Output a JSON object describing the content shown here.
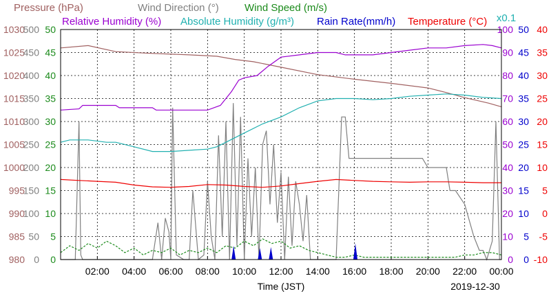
{
  "chart_data": {
    "type": "line",
    "legend_rows": [
      [
        {
          "label": "Pressure (hPa)",
          "color": "#a06060"
        },
        {
          "label": "Wind Direction (°)",
          "color": "#808080"
        },
        {
          "label": "Wind Speed (m/s)",
          "color": "#1a8a1a"
        }
      ],
      [
        {
          "label": "Relative Humidity (%)",
          "color": "#9a00d0"
        },
        {
          "label": "Absolute Humidity (g/m³)",
          "color": "#20b0b0"
        },
        {
          "label": "Rain Rate(mm/h)",
          "color": "#0000cc"
        },
        {
          "label": "Temperature (°C)",
          "color": "#ee0000"
        }
      ]
    ],
    "scale_note": "x0.1",
    "scale_note_color": "#20b0b0",
    "xlabel": "Time (JST)",
    "date": "2019-12-30",
    "xlim": [
      0,
      24
    ],
    "x_ticks": [
      "02:00",
      "04:00",
      "06:00",
      "08:00",
      "10:00",
      "12:00",
      "14:00",
      "16:00",
      "18:00",
      "20:00",
      "22:00",
      "00:00"
    ],
    "axes": {
      "pressure": {
        "color": "#a06060",
        "ticks": [
          "980",
          "985",
          "990",
          "995",
          "1000",
          "1005",
          "1010",
          "1015",
          "1020",
          "1025",
          "1030"
        ],
        "ylim": [
          980,
          1030
        ]
      },
      "wind_dir": {
        "color": "#808080",
        "ticks": [
          "0",
          "50",
          "100",
          "150",
          "200",
          "250",
          "300",
          "350",
          "400",
          "450",
          "500"
        ],
        "ylim": [
          0,
          500
        ]
      },
      "wind_speed": {
        "color": "#1a8a1a",
        "ticks": [
          "0",
          "5",
          "10",
          "15",
          "20",
          "25",
          "30",
          "35",
          "40",
          "45",
          "50"
        ],
        "ylim": [
          0,
          50
        ]
      },
      "humidity": {
        "color": "#9a00d0",
        "ticks": [
          "0",
          "10",
          "20",
          "30",
          "40",
          "50",
          "60",
          "70",
          "80",
          "90",
          "100"
        ],
        "ylim": [
          0,
          100
        ]
      },
      "rain": {
        "color": "#0000cc",
        "ticks": [
          "0",
          "5",
          "10",
          "15",
          "20",
          "25",
          "30",
          "35",
          "40",
          "45",
          "50"
        ],
        "ylim": [
          0,
          50
        ]
      },
      "temperature": {
        "color": "#ee0000",
        "ticks": [
          "-10",
          "-5",
          "0",
          "5",
          "10",
          "15",
          "20",
          "25",
          "30",
          "35",
          "40"
        ],
        "ylim": [
          -10,
          40
        ]
      }
    },
    "series": [
      {
        "name": "Pressure (hPa)",
        "axis": "pressure",
        "color": "#a06060",
        "x": [
          0,
          1.5,
          3,
          5,
          7,
          8.5,
          9.5,
          10.5,
          12,
          14,
          16,
          18,
          20,
          21,
          22,
          23.3,
          24
        ],
        "y": [
          1026.0,
          1026.5,
          1025.2,
          1024.8,
          1024.5,
          1024.2,
          1023.5,
          1023.0,
          1021.8,
          1020.2,
          1019.2,
          1018.3,
          1017.3,
          1016.3,
          1015.2,
          1014.0,
          1013.2
        ]
      },
      {
        "name": "Relative Humidity (%)",
        "axis": "humidity",
        "color": "#9a00d0",
        "x": [
          0,
          1,
          1.2,
          3,
          3.2,
          5,
          5.2,
          8,
          8.7,
          9.3,
          9.7,
          10,
          10.7,
          11.3,
          12,
          13,
          14,
          15,
          15.5,
          17,
          18,
          19,
          20,
          21,
          22,
          23,
          23.5,
          24
        ],
        "y": [
          65,
          65.5,
          67,
          67,
          66,
          66,
          65,
          65,
          67,
          73,
          78,
          79,
          80,
          84,
          88,
          89,
          90,
          90,
          89,
          89,
          90,
          91,
          92,
          92,
          93,
          93.5,
          93,
          92
        ]
      },
      {
        "name": "Absolute Humidity (g/m³)",
        "axis": "humidity",
        "color": "#20b0b0",
        "x": [
          0,
          0.5,
          1.5,
          2.5,
          3,
          4,
          5,
          6,
          7,
          8,
          8.5,
          9,
          10,
          11,
          12,
          13,
          14,
          15,
          16,
          17,
          18,
          19,
          20,
          21,
          22,
          23,
          24
        ],
        "y": [
          51,
          52,
          52,
          51,
          51,
          49,
          47,
          47,
          47.5,
          48,
          49,
          51,
          55,
          59,
          62,
          66,
          69,
          70,
          70,
          69.5,
          70,
          71,
          71.5,
          72,
          71.5,
          70.5,
          70
        ]
      },
      {
        "name": "Temperature (°C)",
        "axis": "temperature",
        "color": "#ee0000",
        "x": [
          0,
          1,
          2,
          3,
          4,
          5,
          6,
          7,
          8,
          9,
          10,
          11,
          12,
          13,
          14,
          15,
          16,
          17,
          18,
          19,
          20,
          21,
          22,
          23,
          24
        ],
        "y": [
          7.4,
          7.2,
          7.0,
          6.8,
          6.2,
          5.8,
          5.7,
          5.9,
          6.3,
          6.2,
          5.9,
          5.7,
          6.0,
          6.5,
          7.0,
          7.4,
          7.2,
          7.0,
          6.9,
          6.8,
          6.9,
          6.9,
          6.8,
          6.7,
          6.7
        ]
      },
      {
        "name": "Wind Direction (°)",
        "axis": "wind_dir",
        "color": "#808080",
        "x": [
          0,
          0.8,
          1.0,
          1.1,
          1.2,
          1.4,
          2,
          3,
          4,
          4.5,
          5,
          5.3,
          5.5,
          5.7,
          5.9,
          6.0,
          6.1,
          6.3,
          6.7,
          7,
          7.2,
          7.5,
          7.8,
          8.0,
          8.2,
          8.4,
          8.6,
          8.8,
          9.0,
          9.2,
          9.4,
          9.6,
          9.8,
          10.0,
          10.2,
          10.4,
          10.6,
          10.8,
          11.0,
          11.2,
          11.4,
          11.6,
          11.8,
          12.0,
          12.2,
          12.4,
          12.6,
          12.8,
          13.0,
          13.2,
          13.4,
          13.6,
          14,
          14.5,
          15.0,
          15.3,
          15.5,
          15.7,
          16.0,
          16.5,
          17,
          18,
          18.5,
          19,
          19.7,
          20.0,
          21,
          21.2,
          21.5,
          22,
          22.5,
          22.8,
          23,
          23.2,
          23.5,
          23.7,
          23.9,
          24
        ],
        "y": [
          0,
          0,
          300,
          10,
          0,
          0,
          0,
          0,
          0,
          0,
          0,
          80,
          0,
          90,
          60,
          0,
          330,
          10,
          0,
          0,
          150,
          0,
          10,
          170,
          50,
          0,
          270,
          50,
          300,
          0,
          340,
          30,
          310,
          0,
          220,
          50,
          200,
          0,
          250,
          280,
          120,
          250,
          80,
          190,
          0,
          180,
          30,
          170,
          120,
          40,
          140,
          0,
          0,
          0,
          0,
          310,
          310,
          220,
          220,
          220,
          220,
          220,
          220,
          220,
          220,
          200,
          200,
          150,
          150,
          120,
          50,
          20,
          20,
          0,
          40,
          300,
          0,
          0
        ]
      },
      {
        "name": "Wind Speed (m/s)",
        "axis": "wind_speed",
        "color": "#1a8a1a",
        "x": [
          0,
          0.5,
          1,
          1.5,
          2,
          2.5,
          3,
          3.5,
          4,
          4.5,
          5,
          5.5,
          6,
          6.5,
          7,
          7.5,
          8,
          8.5,
          9,
          9.5,
          10,
          10.5,
          11,
          11.5,
          12,
          12.5,
          13,
          13.5,
          14,
          14.5,
          15,
          15.5,
          16,
          16.5,
          17,
          17.5,
          18,
          18.5,
          19,
          19.5,
          20,
          20.5,
          21,
          21.5,
          22,
          22.5,
          23,
          23.5,
          24
        ],
        "y": [
          1.5,
          3.0,
          2.0,
          3.5,
          2.5,
          4.0,
          3.0,
          1.5,
          2.5,
          1.0,
          2.0,
          1.5,
          2.5,
          1.0,
          2.0,
          1.5,
          2.5,
          1.5,
          3.0,
          2.5,
          4.0,
          3.0,
          4.5,
          3.5,
          4.0,
          2.5,
          3.0,
          2.0,
          1.5,
          1.0,
          0.5,
          0.5,
          1.0,
          0.5,
          0.5,
          0.5,
          0.5,
          0.5,
          0.5,
          0.5,
          0.5,
          0.5,
          0.5,
          0.5,
          1.0,
          1.0,
          1.5,
          1.5,
          1.0
        ]
      }
    ],
    "rain_events": [
      {
        "x": 9.42,
        "value": 3.0
      },
      {
        "x": 10.85,
        "value": 2.5
      },
      {
        "x": 11.45,
        "value": 2.7
      },
      {
        "x": 16.05,
        "value": 3.5
      }
    ],
    "grid": true
  }
}
